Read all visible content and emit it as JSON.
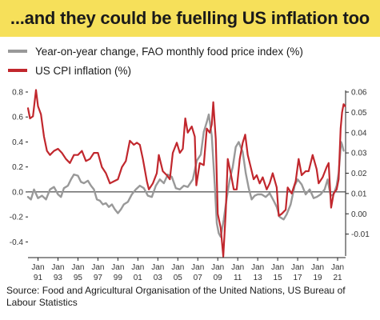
{
  "header": {
    "title": "...and they could be fuelling US inflation too"
  },
  "source": "Source: Food and Agricultural Organisation of the United Nations,  US Bureau of Labour Statistics",
  "colors": {
    "title_background": "#f6e05a",
    "food_series": "#999999",
    "cpi_series": "#c1272d",
    "axis": "#222222"
  },
  "chart_data": {
    "type": "line",
    "title": "...and they could be fuelling US inflation too",
    "xlabel": "",
    "xlim": [
      1990.0,
      2021.8
    ],
    "y_left": {
      "series": "food",
      "lim": [
        -0.5,
        0.8
      ],
      "ticks": [
        0.8,
        0.6,
        0.4,
        0.2,
        0.0,
        -0.2,
        -0.4
      ],
      "tick_labels": [
        "0.8",
        "0.6",
        "0.4",
        "0.2",
        "0.0",
        "-0.2",
        "-0.4"
      ]
    },
    "y_right": {
      "series": "cpi",
      "lim": [
        -0.02,
        0.06
      ],
      "ticks": [
        0.06,
        0.05,
        0.04,
        0.03,
        0.02,
        0.01,
        0.0,
        -0.01
      ],
      "tick_labels": [
        "0.06",
        "0.05",
        "0.04",
        "0.03",
        "0.02",
        "0.01",
        "0.00",
        "-0.01"
      ]
    },
    "x_ticks": [
      {
        "x": 1991,
        "top": "Jan",
        "bottom": "91"
      },
      {
        "x": 1993,
        "top": "Jan",
        "bottom": "93"
      },
      {
        "x": 1995,
        "top": "Jan",
        "bottom": "95"
      },
      {
        "x": 1997,
        "top": "Jan",
        "bottom": "97"
      },
      {
        "x": 1999,
        "top": "Jan",
        "bottom": "99"
      },
      {
        "x": 2001,
        "top": "Jan",
        "bottom": "01"
      },
      {
        "x": 2003,
        "top": "Jan",
        "bottom": "03"
      },
      {
        "x": 2005,
        "top": "Jan",
        "bottom": "05"
      },
      {
        "x": 2007,
        "top": "Jan",
        "bottom": "07"
      },
      {
        "x": 2009,
        "top": "Jan",
        "bottom": "09"
      },
      {
        "x": 2011,
        "top": "Jan",
        "bottom": "11"
      },
      {
        "x": 2013,
        "top": "Jan",
        "bottom": "13"
      },
      {
        "x": 2015,
        "top": "Jan",
        "bottom": "15"
      },
      {
        "x": 2017,
        "top": "Jan",
        "bottom": "17"
      },
      {
        "x": 2019,
        "top": "Jan",
        "bottom": "19"
      },
      {
        "x": 2021,
        "top": "Jan",
        "bottom": "21"
      }
    ],
    "legend_position": "top-left",
    "grid": false,
    "series": [
      {
        "key": "food",
        "name": "Year-on-year change, FAO monthly food price index (%)",
        "axis": "left",
        "color": "#999999",
        "points": [
          [
            1990.0,
            -0.04
          ],
          [
            1990.3,
            -0.06
          ],
          [
            1990.6,
            0.02
          ],
          [
            1991.0,
            -0.05
          ],
          [
            1991.4,
            -0.03
          ],
          [
            1991.8,
            -0.06
          ],
          [
            1992.2,
            0.02
          ],
          [
            1992.6,
            0.04
          ],
          [
            1993.0,
            -0.02
          ],
          [
            1993.3,
            -0.04
          ],
          [
            1993.6,
            0.03
          ],
          [
            1994.0,
            0.05
          ],
          [
            1994.3,
            0.1
          ],
          [
            1994.6,
            0.14
          ],
          [
            1995.0,
            0.13
          ],
          [
            1995.3,
            0.08
          ],
          [
            1995.6,
            0.07
          ],
          [
            1996.0,
            0.09
          ],
          [
            1996.3,
            0.05
          ],
          [
            1996.6,
            0.02
          ],
          [
            1996.9,
            -0.06
          ],
          [
            1997.2,
            -0.07
          ],
          [
            1997.5,
            -0.1
          ],
          [
            1997.8,
            -0.09
          ],
          [
            1998.1,
            -0.12
          ],
          [
            1998.4,
            -0.1
          ],
          [
            1998.7,
            -0.14
          ],
          [
            1999.0,
            -0.17
          ],
          [
            1999.3,
            -0.14
          ],
          [
            1999.6,
            -0.1
          ],
          [
            2000.0,
            -0.08
          ],
          [
            2000.4,
            -0.02
          ],
          [
            2000.8,
            0.02
          ],
          [
            2001.2,
            0.05
          ],
          [
            2001.6,
            0.03
          ],
          [
            2002.0,
            -0.03
          ],
          [
            2002.4,
            -0.04
          ],
          [
            2002.8,
            0.05
          ],
          [
            2003.2,
            0.1
          ],
          [
            2003.6,
            0.07
          ],
          [
            2004.0,
            0.14
          ],
          [
            2004.4,
            0.12
          ],
          [
            2004.8,
            0.03
          ],
          [
            2005.2,
            0.02
          ],
          [
            2005.6,
            0.05
          ],
          [
            2006.0,
            0.04
          ],
          [
            2006.5,
            0.1
          ],
          [
            2006.9,
            0.25
          ],
          [
            2007.3,
            0.3
          ],
          [
            2007.6,
            0.48
          ],
          [
            2007.9,
            0.56
          ],
          [
            2008.1,
            0.62
          ],
          [
            2008.4,
            0.45
          ],
          [
            2008.7,
            0.05
          ],
          [
            2008.9,
            -0.25
          ],
          [
            2009.1,
            -0.33
          ],
          [
            2009.3,
            -0.36
          ],
          [
            2009.6,
            -0.22
          ],
          [
            2009.9,
            -0.05
          ],
          [
            2010.2,
            0.1
          ],
          [
            2010.5,
            0.2
          ],
          [
            2010.8,
            0.36
          ],
          [
            2011.1,
            0.4
          ],
          [
            2011.5,
            0.32
          ],
          [
            2011.8,
            0.15
          ],
          [
            2012.1,
            0.03
          ],
          [
            2012.4,
            -0.06
          ],
          [
            2012.7,
            -0.03
          ],
          [
            2013.0,
            -0.02
          ],
          [
            2013.4,
            -0.02
          ],
          [
            2013.8,
            -0.04
          ],
          [
            2014.2,
            -0.01
          ],
          [
            2014.6,
            -0.07
          ],
          [
            2014.9,
            -0.12
          ],
          [
            2015.2,
            -0.2
          ],
          [
            2015.6,
            -0.22
          ],
          [
            2015.9,
            -0.18
          ],
          [
            2016.3,
            -0.1
          ],
          [
            2016.7,
            0.05
          ],
          [
            2017.0,
            0.1
          ],
          [
            2017.4,
            0.06
          ],
          [
            2017.8,
            -0.02
          ],
          [
            2018.2,
            0.02
          ],
          [
            2018.6,
            -0.05
          ],
          [
            2018.9,
            -0.04
          ],
          [
            2019.3,
            -0.02
          ],
          [
            2019.7,
            0.02
          ],
          [
            2020.0,
            0.1
          ],
          [
            2020.3,
            -0.03
          ],
          [
            2020.6,
            -0.02
          ],
          [
            2020.9,
            0.05
          ],
          [
            2021.1,
            0.15
          ],
          [
            2021.35,
            0.4
          ],
          [
            2021.45,
            0.38
          ],
          [
            2021.6,
            0.33
          ]
        ]
      },
      {
        "key": "cpi",
        "name": "US CPI inflation (%)",
        "axis": "right",
        "color": "#c1272d",
        "points": [
          [
            1990.0,
            0.052
          ],
          [
            1990.2,
            0.047
          ],
          [
            1990.5,
            0.048
          ],
          [
            1990.8,
            0.061
          ],
          [
            1991.0,
            0.053
          ],
          [
            1991.3,
            0.049
          ],
          [
            1991.6,
            0.038
          ],
          [
            1991.9,
            0.031
          ],
          [
            1992.2,
            0.029
          ],
          [
            1992.6,
            0.031
          ],
          [
            1993.0,
            0.032
          ],
          [
            1993.4,
            0.03
          ],
          [
            1993.8,
            0.027
          ],
          [
            1994.2,
            0.025
          ],
          [
            1994.6,
            0.029
          ],
          [
            1995.0,
            0.029
          ],
          [
            1995.4,
            0.031
          ],
          [
            1995.8,
            0.026
          ],
          [
            1996.2,
            0.027
          ],
          [
            1996.6,
            0.03
          ],
          [
            1997.0,
            0.03
          ],
          [
            1997.4,
            0.023
          ],
          [
            1997.8,
            0.02
          ],
          [
            1998.2,
            0.015
          ],
          [
            1998.6,
            0.016
          ],
          [
            1999.0,
            0.017
          ],
          [
            1999.4,
            0.023
          ],
          [
            1999.8,
            0.026
          ],
          [
            2000.2,
            0.036
          ],
          [
            2000.6,
            0.034
          ],
          [
            2000.9,
            0.035
          ],
          [
            2001.2,
            0.034
          ],
          [
            2001.5,
            0.027
          ],
          [
            2001.9,
            0.016
          ],
          [
            2002.1,
            0.012
          ],
          [
            2002.5,
            0.015
          ],
          [
            2002.9,
            0.02
          ],
          [
            2003.1,
            0.029
          ],
          [
            2003.5,
            0.021
          ],
          [
            2003.9,
            0.019
          ],
          [
            2004.2,
            0.017
          ],
          [
            2004.5,
            0.03
          ],
          [
            2004.9,
            0.035
          ],
          [
            2005.2,
            0.03
          ],
          [
            2005.5,
            0.032
          ],
          [
            2005.75,
            0.047
          ],
          [
            2006.0,
            0.04
          ],
          [
            2006.4,
            0.043
          ],
          [
            2006.7,
            0.038
          ],
          [
            2006.85,
            0.014
          ],
          [
            2007.2,
            0.025
          ],
          [
            2007.6,
            0.024
          ],
          [
            2007.9,
            0.042
          ],
          [
            2008.2,
            0.04
          ],
          [
            2008.4,
            0.044
          ],
          [
            2008.55,
            0.055
          ],
          [
            2008.8,
            0.037
          ],
          [
            2009.0,
            0.0
          ],
          [
            2009.3,
            -0.007
          ],
          [
            2009.55,
            -0.021
          ],
          [
            2009.8,
            0.001
          ],
          [
            2010.0,
            0.027
          ],
          [
            2010.3,
            0.02
          ],
          [
            2010.6,
            0.012
          ],
          [
            2010.9,
            0.012
          ],
          [
            2011.2,
            0.027
          ],
          [
            2011.5,
            0.035
          ],
          [
            2011.75,
            0.039
          ],
          [
            2012.0,
            0.029
          ],
          [
            2012.3,
            0.023
          ],
          [
            2012.6,
            0.017
          ],
          [
            2012.9,
            0.019
          ],
          [
            2013.2,
            0.015
          ],
          [
            2013.5,
            0.018
          ],
          [
            2013.9,
            0.012
          ],
          [
            2014.2,
            0.015
          ],
          [
            2014.5,
            0.02
          ],
          [
            2014.9,
            0.013
          ],
          [
            2015.1,
            -0.001
          ],
          [
            2015.4,
            0.0
          ],
          [
            2015.8,
            0.002
          ],
          [
            2016.0,
            0.013
          ],
          [
            2016.4,
            0.01
          ],
          [
            2016.8,
            0.016
          ],
          [
            2017.1,
            0.027
          ],
          [
            2017.4,
            0.019
          ],
          [
            2017.8,
            0.021
          ],
          [
            2018.1,
            0.021
          ],
          [
            2018.5,
            0.029
          ],
          [
            2018.9,
            0.022
          ],
          [
            2019.1,
            0.015
          ],
          [
            2019.5,
            0.018
          ],
          [
            2019.9,
            0.023
          ],
          [
            2020.1,
            0.025
          ],
          [
            2020.35,
            0.003
          ],
          [
            2020.6,
            0.01
          ],
          [
            2020.9,
            0.012
          ],
          [
            2021.1,
            0.017
          ],
          [
            2021.3,
            0.042
          ],
          [
            2021.45,
            0.05
          ],
          [
            2021.6,
            0.054
          ],
          [
            2021.75,
            0.053
          ]
        ]
      }
    ]
  }
}
